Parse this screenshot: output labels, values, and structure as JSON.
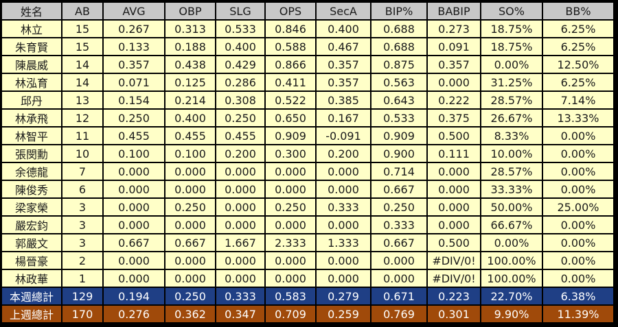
{
  "headers": [
    "姓名",
    "AB",
    "AVG",
    "OBP",
    "SLG",
    "OPS",
    "SecA",
    "BIP%",
    "BABIP",
    "SO%",
    "BB%"
  ],
  "rows": [
    [
      "林立",
      "15",
      "0.267",
      "0.313",
      "0.533",
      "0.846",
      "0.400",
      "0.688",
      "0.273",
      "18.75%",
      "6.25%"
    ],
    [
      "朱育賢",
      "15",
      "0.133",
      "0.188",
      "0.400",
      "0.588",
      "0.467",
      "0.688",
      "0.091",
      "18.75%",
      "6.25%"
    ],
    [
      "陳晨威",
      "14",
      "0.357",
      "0.438",
      "0.429",
      "0.866",
      "0.357",
      "0.875",
      "0.357",
      "0.00%",
      "12.50%"
    ],
    [
      "林泓育",
      "14",
      "0.071",
      "0.125",
      "0.286",
      "0.411",
      "0.357",
      "0.563",
      "0.000",
      "31.25%",
      "6.25%"
    ],
    [
      "邱丹",
      "13",
      "0.154",
      "0.214",
      "0.308",
      "0.522",
      "0.385",
      "0.643",
      "0.222",
      "28.57%",
      "7.14%"
    ],
    [
      "林承飛",
      "12",
      "0.250",
      "0.400",
      "0.250",
      "0.650",
      "0.167",
      "0.533",
      "0.375",
      "26.67%",
      "13.33%"
    ],
    [
      "林智平",
      "11",
      "0.455",
      "0.455",
      "0.455",
      "0.909",
      "-0.091",
      "0.909",
      "0.500",
      "8.33%",
      "0.00%"
    ],
    [
      "張閔勳",
      "10",
      "0.100",
      "0.100",
      "0.200",
      "0.300",
      "0.200",
      "0.900",
      "0.111",
      "10.00%",
      "0.00%"
    ],
    [
      "余德龍",
      "7",
      "0.000",
      "0.000",
      "0.000",
      "0.000",
      "0.000",
      "0.714",
      "0.000",
      "28.57%",
      "0.00%"
    ],
    [
      "陳俊秀",
      "6",
      "0.000",
      "0.000",
      "0.000",
      "0.000",
      "0.000",
      "0.667",
      "0.000",
      "33.33%",
      "0.00%"
    ],
    [
      "梁家榮",
      "3",
      "0.000",
      "0.250",
      "0.000",
      "0.250",
      "0.333",
      "0.250",
      "0.000",
      "50.00%",
      "25.00%"
    ],
    [
      "嚴宏鈞",
      "3",
      "0.000",
      "0.000",
      "0.000",
      "0.000",
      "0.000",
      "0.333",
      "0.000",
      "66.67%",
      "0.00%"
    ],
    [
      "郭嚴文",
      "3",
      "0.667",
      "0.667",
      "1.667",
      "2.333",
      "1.333",
      "0.667",
      "0.500",
      "0.00%",
      "0.00%"
    ],
    [
      "楊晉豪",
      "2",
      "0.000",
      "0.000",
      "0.000",
      "0.000",
      "0.000",
      "0.000",
      "#DIV/0!",
      "100.00%",
      "0.00%"
    ],
    [
      "林政華",
      "1",
      "0.000",
      "0.000",
      "0.000",
      "0.000",
      "0.000",
      "0.000",
      "#DIV/0!",
      "100.00%",
      "0.00%"
    ]
  ],
  "this_week": [
    "本週總計",
    "129",
    "0.194",
    "0.250",
    "0.333",
    "0.583",
    "0.279",
    "0.671",
    "0.223",
    "22.70%",
    "6.38%"
  ],
  "last_week": [
    "上週總計",
    "170",
    "0.276",
    "0.362",
    "0.347",
    "0.709",
    "0.259",
    "0.769",
    "0.301",
    "9.90%",
    "11.39%"
  ],
  "colors": {
    "header_bg": "#c8c8c8",
    "row_bg": "#ffffc8",
    "this_week_bg": "#1f3f85",
    "last_week_bg": "#a04a0a",
    "grid": "#000000"
  }
}
